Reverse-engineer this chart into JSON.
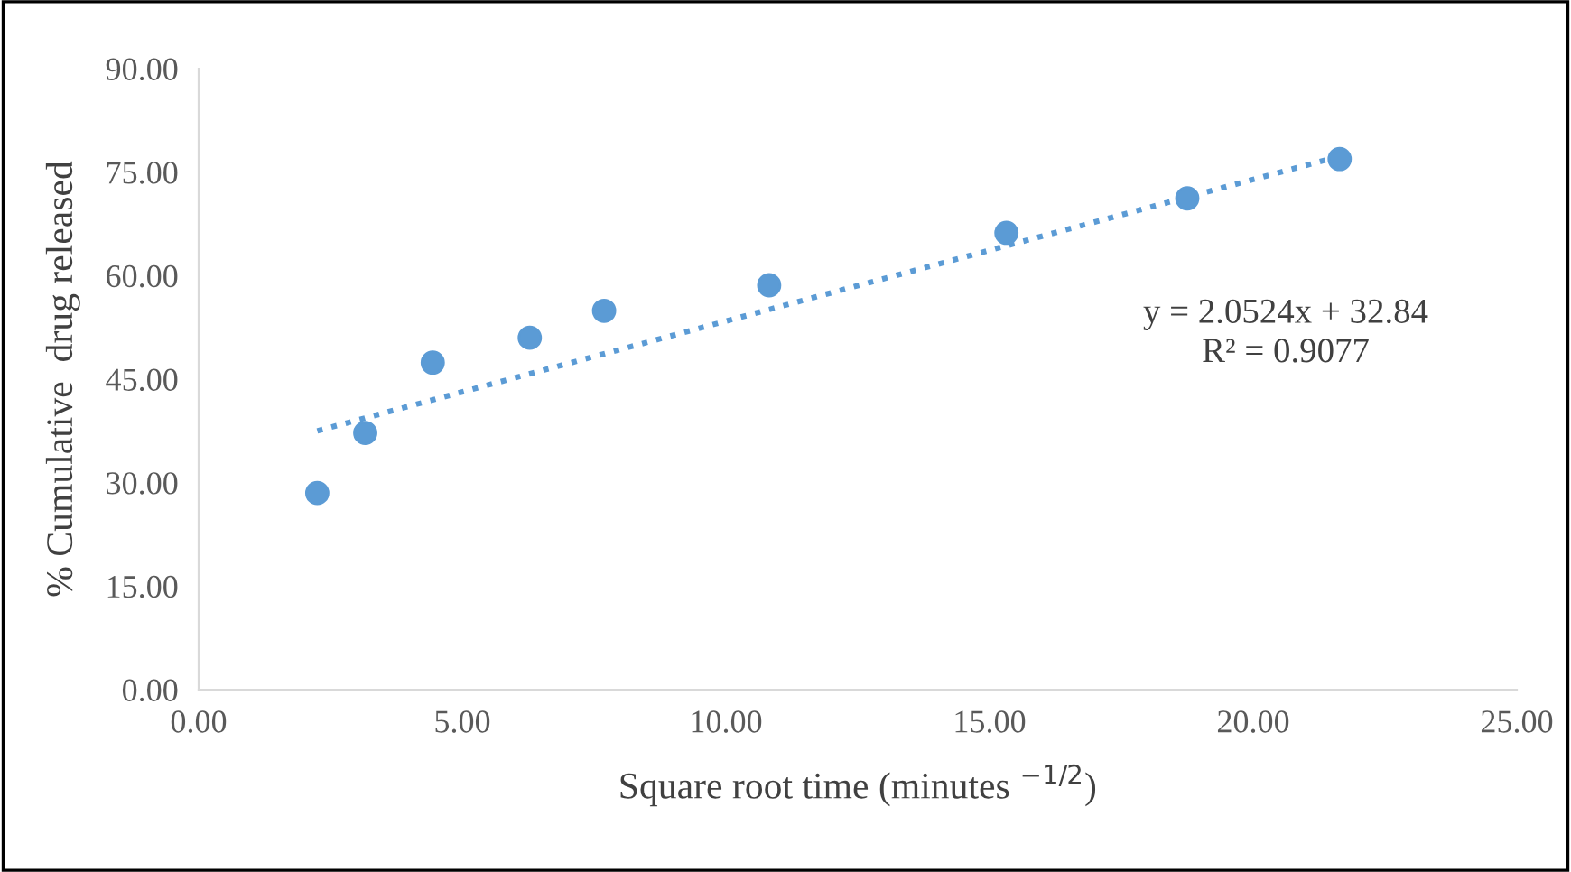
{
  "chart_data": {
    "type": "scatter",
    "xlabel": "Square root time (minutes $^{−1/2}$)",
    "ylabel": "% Cumulative  drug released",
    "xlim": [
      0,
      25
    ],
    "ylim": [
      0,
      90
    ],
    "xticks": [
      {
        "value": 0,
        "label": "0.00"
      },
      {
        "value": 5,
        "label": "5.00"
      },
      {
        "value": 10,
        "label": "10.00"
      },
      {
        "value": 15,
        "label": "15.00"
      },
      {
        "value": 20,
        "label": "20.00"
      },
      {
        "value": 25,
        "label": "25.00"
      }
    ],
    "yticks": [
      {
        "value": 0,
        "label": "0.00"
      },
      {
        "value": 15,
        "label": "15.00"
      },
      {
        "value": 30,
        "label": "30.00"
      },
      {
        "value": 45,
        "label": "45.00"
      },
      {
        "value": 60,
        "label": "60.00"
      },
      {
        "value": 75,
        "label": "75.00"
      },
      {
        "value": 90,
        "label": "90.00"
      }
    ],
    "grid": false,
    "legend": false,
    "marker": "circle",
    "series": [
      {
        "color": "#5b9bd5",
        "x": [
          2.25,
          3.16,
          4.44,
          6.28,
          7.69,
          10.82,
          15.32,
          18.75,
          21.64
        ],
        "values": [
          28.5,
          37.2,
          47.4,
          51.0,
          54.9,
          58.6,
          66.2,
          71.2,
          76.9
        ]
      },
      {
        "type": "line",
        "color": "#5b9bd5",
        "line_style": "dotted",
        "marker": "none",
        "x": [
          2.25,
          21.64
        ],
        "values": [
          37.5,
          77.3
        ]
      }
    ],
    "annotations": [
      "y = 2.0524x + 32.84\nR² = 0.9077"
    ]
  }
}
